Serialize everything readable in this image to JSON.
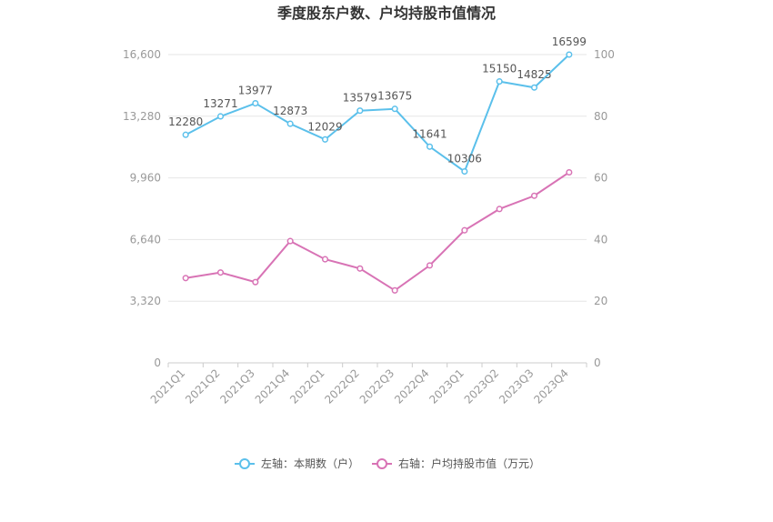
{
  "chart_data": {
    "type": "line",
    "title": "季度股东户数、户均持股市值情况",
    "categories": [
      "2021Q1",
      "2021Q2",
      "2021Q3",
      "2021Q4",
      "2022Q1",
      "2022Q2",
      "2022Q3",
      "2022Q4",
      "2023Q1",
      "2023Q2",
      "2023Q3",
      "2023Q4"
    ],
    "left_axis": {
      "ticks": [
        "0",
        "3,320",
        "6,640",
        "9,960",
        "13,280",
        "16,600"
      ],
      "ylim": [
        0,
        16600
      ]
    },
    "right_axis": {
      "ticks": [
        "0",
        "20",
        "40",
        "60",
        "80",
        "100"
      ],
      "ylim": [
        0,
        100
      ]
    },
    "series": [
      {
        "name": "左轴：本期数（户）",
        "axis": "left",
        "color": "#5bc0eb",
        "values": [
          12280,
          13271,
          13977,
          12873,
          12029,
          13579,
          13675,
          11641,
          10306,
          15150,
          14825,
          16599
        ],
        "labels": [
          "12280",
          "13271",
          "13977",
          "12873",
          "12029",
          "13579",
          "13675",
          "11641",
          "10306",
          "15150",
          "14825",
          "16599"
        ]
      },
      {
        "name": "右轴：户均持股市值（万元）",
        "axis": "right",
        "color": "#d873b5",
        "values": [
          27.5,
          29.3,
          26.2,
          39.5,
          33.6,
          30.6,
          23.5,
          31.6,
          43.0,
          49.9,
          54.2,
          61.8
        ]
      }
    ],
    "grid": true,
    "legend_position": "bottom-center"
  }
}
